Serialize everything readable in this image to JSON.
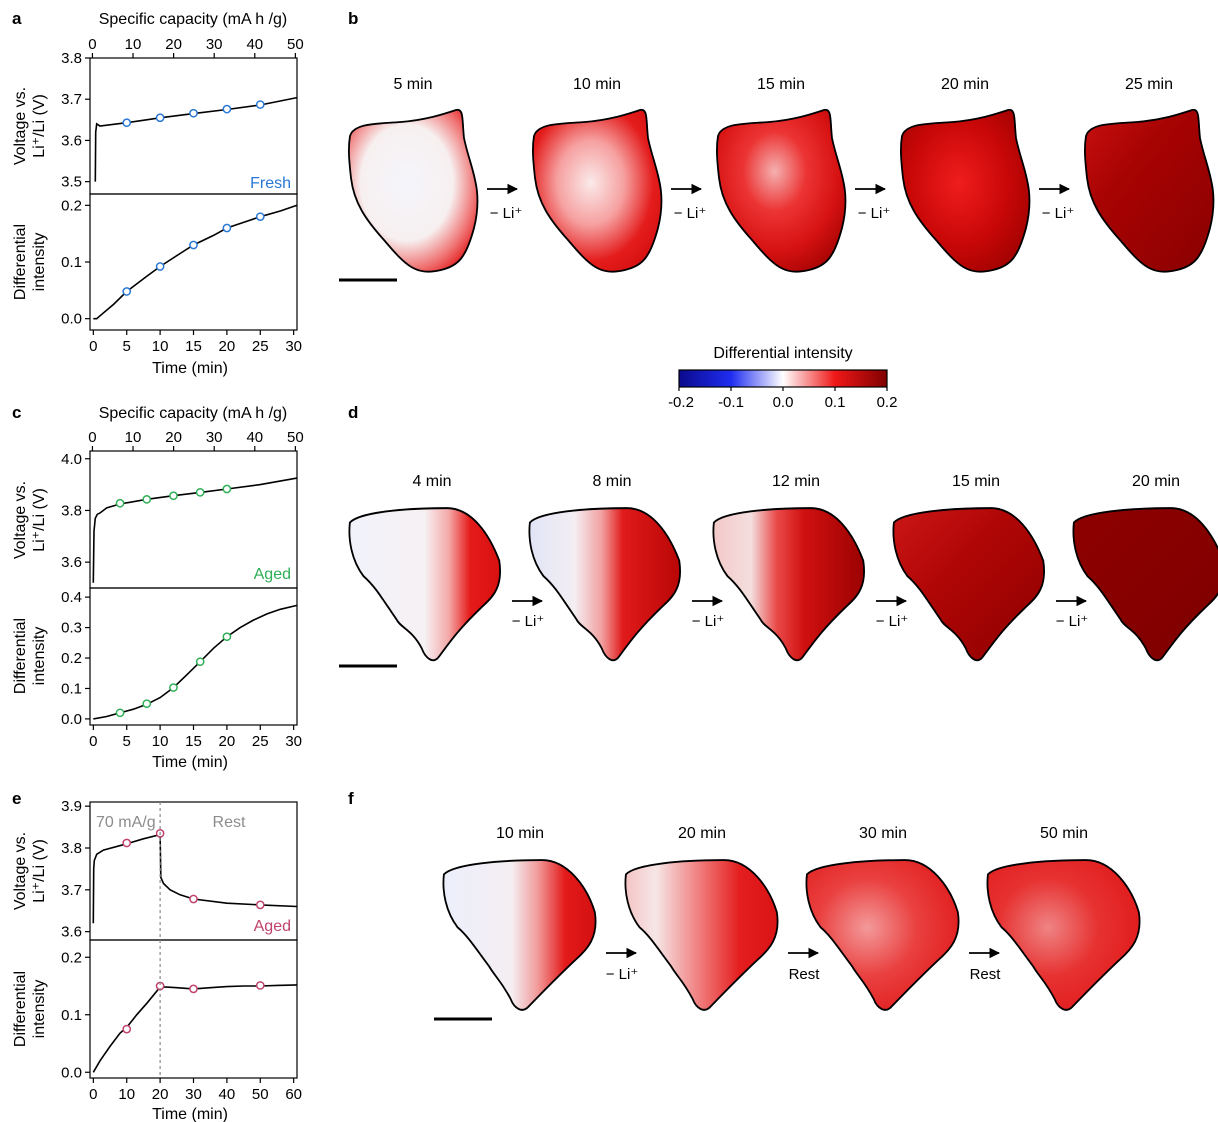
{
  "panels": {
    "a": {
      "letter": "a",
      "top_axis_label": "Specific capacity (mA h /g)",
      "top_ticks": [
        "0",
        "10",
        "20",
        "30",
        "40",
        "50"
      ],
      "voltage_label_1": "Voltage vs.",
      "voltage_label_2": "Li⁺/Li (V)",
      "voltage_ticks": [
        "3.5",
        "3.6",
        "3.7",
        "3.8"
      ],
      "intensity_label_1": "Differential",
      "intensity_label_2": "intensity",
      "intensity_ticks": [
        "0.0",
        "0.1",
        "0.2"
      ],
      "time_ticks": [
        "0",
        "5",
        "10",
        "15",
        "20",
        "25",
        "30"
      ],
      "xlabel": "Time (min)",
      "tag": "Fresh",
      "tag_color": "#2a78d6",
      "marker_color": "#2a78d6"
    },
    "c": {
      "letter": "c",
      "top_axis_label": "Specific capacity (mA h /g)",
      "top_ticks": [
        "0",
        "10",
        "20",
        "30",
        "40",
        "50"
      ],
      "voltage_label_1": "Voltage vs.",
      "voltage_label_2": "Li⁺/Li (V)",
      "voltage_ticks": [
        "3.6",
        "3.8",
        "4.0"
      ],
      "intensity_label_1": "Differential",
      "intensity_label_2": "intensity",
      "intensity_ticks": [
        "0.0",
        "0.1",
        "0.2",
        "0.3",
        "0.4"
      ],
      "time_ticks": [
        "0",
        "5",
        "10",
        "15",
        "20",
        "25",
        "30"
      ],
      "xlabel": "Time (min)",
      "tag": "Aged",
      "tag_color": "#2fae57",
      "marker_color": "#2fae57"
    },
    "e": {
      "letter": "e",
      "voltage_label_1": "Voltage vs.",
      "voltage_label_2": "Li⁺/Li (V)",
      "voltage_ticks": [
        "3.6",
        "3.7",
        "3.8",
        "3.9"
      ],
      "intensity_label_1": "Differential",
      "intensity_label_2": "intensity",
      "intensity_ticks": [
        "0.0",
        "0.1",
        "0.2"
      ],
      "time_ticks": [
        "0",
        "10",
        "20",
        "30",
        "40",
        "50",
        "60"
      ],
      "xlabel": "Time (min)",
      "tag": "Aged",
      "tag_color": "#c0436b",
      "marker_color": "#c0436b",
      "rate_label": "70 mA/g",
      "rest_label": "Rest"
    },
    "b": {
      "letter": "b",
      "times": [
        "5 min",
        "10 min",
        "15 min",
        "20 min",
        "25 min"
      ],
      "step_label": "− Li⁺"
    },
    "d": {
      "letter": "d",
      "times": [
        "4 min",
        "8 min",
        "12 min",
        "15 min",
        "20 min"
      ],
      "step_label": "− Li⁺"
    },
    "f": {
      "letter": "f",
      "times": [
        "10 min",
        "20 min",
        "30 min",
        "50 min"
      ],
      "step_labels": [
        "− Li⁺",
        "Rest",
        "Rest"
      ]
    }
  },
  "colorbar": {
    "title": "Differential intensity",
    "ticks": [
      "-0.2",
      "-0.1",
      "0.0",
      "0.1",
      "0.2"
    ],
    "colors": [
      "#0a0a8c",
      "#1f2df0",
      "#ffffff",
      "#f01818",
      "#800000"
    ]
  },
  "chart_data": [
    {
      "type": "line",
      "panel": "a",
      "ylabel": "Voltage vs. Li⁺/Li (V)",
      "ylim": [
        3.47,
        3.8
      ],
      "secondary_xlabel": "Specific capacity (mA h /g)",
      "series": [
        {
          "x": [
            0.3,
            0.35,
            0.5,
            1,
            5,
            10,
            15,
            20,
            25,
            30.5
          ],
          "values": [
            3.5,
            3.62,
            3.64,
            3.635,
            3.643,
            3.655,
            3.665,
            3.675,
            3.686,
            3.704
          ]
        }
      ],
      "markers": {
        "x": [
          5,
          10,
          15,
          20,
          25
        ],
        "values": [
          3.643,
          3.655,
          3.666,
          3.676,
          3.687
        ]
      }
    },
    {
      "type": "line",
      "panel": "a",
      "xlabel": "Time (min)",
      "ylabel": "Differential intensity",
      "xlim": [
        -0.5,
        30.5
      ],
      "ylim": [
        -0.02,
        0.22
      ],
      "series": [
        {
          "x": [
            0,
            0.5,
            1,
            3,
            5,
            8,
            10,
            13,
            15,
            18,
            20,
            23,
            25,
            28,
            30.5
          ],
          "values": [
            0,
            0,
            0.005,
            0.025,
            0.048,
            0.075,
            0.092,
            0.115,
            0.13,
            0.147,
            0.16,
            0.172,
            0.18,
            0.19,
            0.2
          ]
        }
      ],
      "markers": {
        "x": [
          5,
          10,
          15,
          20,
          25
        ],
        "values": [
          0.048,
          0.092,
          0.13,
          0.16,
          0.18
        ]
      }
    },
    {
      "type": "line",
      "panel": "c",
      "ylabel": "Voltage vs. Li⁺/Li (V)",
      "ylim": [
        3.5,
        4.03
      ],
      "secondary_xlabel": "Specific capacity (mA h /g)",
      "series": [
        {
          "x": [
            0,
            0.1,
            0.3,
            0.6,
            1,
            2,
            4,
            8,
            12,
            16,
            20,
            25,
            30.5
          ],
          "values": [
            3.52,
            3.72,
            3.77,
            3.785,
            3.79,
            3.81,
            3.825,
            3.843,
            3.857,
            3.87,
            3.883,
            3.9,
            3.925
          ]
        }
      ],
      "markers": {
        "x": [
          4,
          8,
          12,
          16,
          20
        ],
        "values": [
          3.828,
          3.843,
          3.857,
          3.87,
          3.883
        ]
      }
    },
    {
      "type": "line",
      "panel": "c",
      "xlabel": "Time (min)",
      "ylabel": "Differential intensity",
      "xlim": [
        -0.5,
        30.5
      ],
      "ylim": [
        -0.02,
        0.43
      ],
      "series": [
        {
          "x": [
            0,
            2,
            4,
            6,
            8,
            10,
            12,
            14,
            16,
            18,
            20,
            22,
            24,
            26,
            28,
            30.5
          ],
          "values": [
            0,
            0.008,
            0.02,
            0.032,
            0.048,
            0.07,
            0.103,
            0.145,
            0.188,
            0.232,
            0.27,
            0.3,
            0.325,
            0.345,
            0.36,
            0.373
          ]
        }
      ],
      "markers": {
        "x": [
          4,
          8,
          12,
          16,
          20
        ],
        "values": [
          0.02,
          0.05,
          0.103,
          0.188,
          0.27
        ]
      }
    },
    {
      "type": "line",
      "panel": "e",
      "ylabel": "Voltage vs. Li⁺/Li (V)",
      "ylim": [
        3.58,
        3.91
      ],
      "series": [
        {
          "x": [
            0,
            0.1,
            0.3,
            1,
            3,
            10,
            15,
            20,
            20.2,
            21,
            23,
            26,
            30,
            40,
            50,
            61
          ],
          "values": [
            3.62,
            3.75,
            3.77,
            3.785,
            3.795,
            3.81,
            3.822,
            3.832,
            3.73,
            3.715,
            3.7,
            3.688,
            3.678,
            3.668,
            3.664,
            3.66
          ]
        }
      ],
      "markers": {
        "x": [
          10,
          20,
          30,
          50
        ],
        "values": [
          3.812,
          3.835,
          3.678,
          3.664
        ]
      }
    },
    {
      "type": "line",
      "panel": "e",
      "xlabel": "Time (min)",
      "ylabel": "Differential intensity",
      "xlim": [
        -1,
        61
      ],
      "ylim": [
        -0.01,
        0.23
      ],
      "series": [
        {
          "x": [
            0,
            2,
            5,
            8,
            10,
            13,
            16,
            20,
            22,
            25,
            30,
            35,
            40,
            45,
            50,
            55,
            61
          ],
          "values": [
            0,
            0.02,
            0.045,
            0.068,
            0.078,
            0.1,
            0.12,
            0.148,
            0.148,
            0.147,
            0.145,
            0.147,
            0.149,
            0.15,
            0.15,
            0.151,
            0.152
          ]
        }
      ],
      "markers": {
        "x": [
          10,
          20,
          30,
          50
        ],
        "values": [
          0.075,
          0.15,
          0.145,
          0.151
        ]
      }
    }
  ]
}
